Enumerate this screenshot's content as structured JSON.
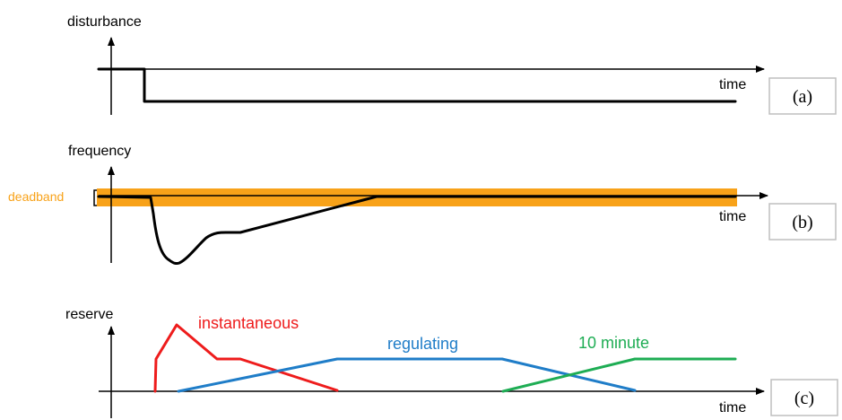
{
  "colors": {
    "deadband": "#f8a219",
    "instantaneous": "#ee1c1c",
    "regulating": "#1f7dc8",
    "ten_minute": "#1ead54",
    "trace": "#000000"
  },
  "panels": {
    "a": {
      "ylabel": "disturbance",
      "xlabel": "time",
      "tag": "(a)"
    },
    "b": {
      "ylabel": "frequency",
      "xlabel": "time",
      "tag": "(b)",
      "band_label": "deadband"
    },
    "c": {
      "ylabel": "reserve",
      "xlabel": "time",
      "tag": "(c)",
      "series": [
        {
          "name": "instantaneous",
          "color": "#ee1c1c"
        },
        {
          "name": "regulating",
          "color": "#1f7dc8"
        },
        {
          "name": "10 minute",
          "color": "#1ead54"
        }
      ]
    }
  }
}
